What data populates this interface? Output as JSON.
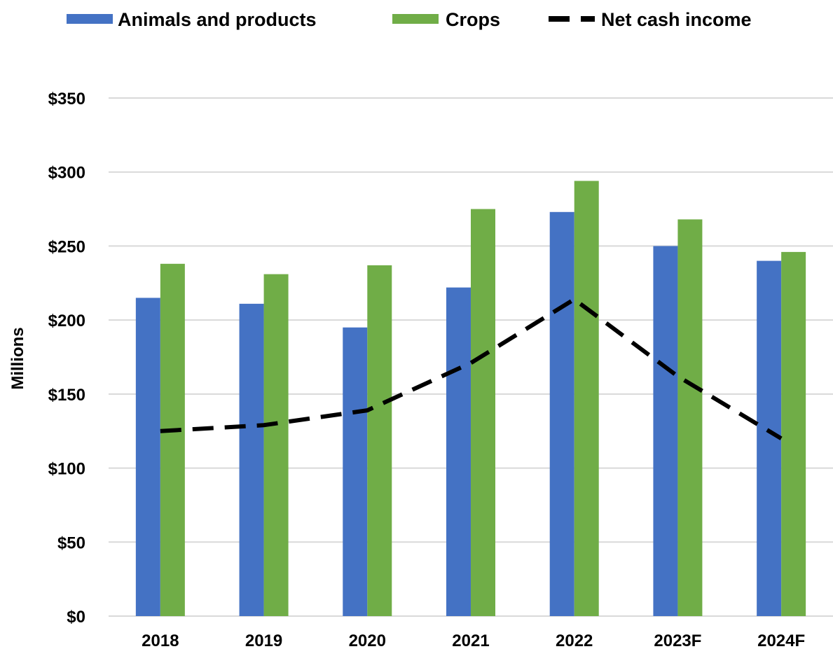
{
  "chart_data": {
    "type": "bar",
    "categories": [
      "2018",
      "2019",
      "2020",
      "2021",
      "2022",
      "2023F",
      "2024F"
    ],
    "series": [
      {
        "name": "Animals and products",
        "kind": "bar",
        "color": "#4472C4",
        "values": [
          215,
          211,
          195,
          222,
          273,
          250,
          240
        ]
      },
      {
        "name": "Crops",
        "kind": "bar",
        "color": "#70AD47",
        "values": [
          238,
          231,
          237,
          275,
          294,
          268,
          246
        ]
      },
      {
        "name": "Net cash income",
        "kind": "line",
        "style": "dashed",
        "color": "#000000",
        "values": [
          125,
          129,
          139,
          171,
          214,
          162,
          120
        ]
      }
    ],
    "ylabel": "Millions",
    "xlabel": "",
    "ylim": [
      0,
      350
    ],
    "yticks": [
      0,
      50,
      100,
      150,
      200,
      250,
      300,
      350
    ],
    "ytick_labels": [
      "$0",
      "$50",
      "$100",
      "$150",
      "$200",
      "$250",
      "$300",
      "$350"
    ],
    "grid": true,
    "legend_position": "top"
  }
}
